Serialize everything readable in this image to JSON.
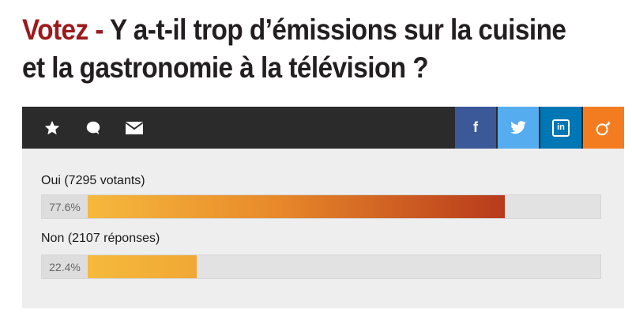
{
  "headline": {
    "kicker": "Votez -",
    "line1": "Y a-t-il trop d’émissions sur la cuisine",
    "line2": "et la gastronomie à la télévision ?"
  },
  "toolbar": {
    "left_icons": [
      "star-icon",
      "comment-icon",
      "mail-icon"
    ],
    "share": [
      {
        "name": "facebook",
        "glyph": "f",
        "color": "#3b5998"
      },
      {
        "name": "twitter",
        "icon": "twitter-bird-icon",
        "color": "#55acee"
      },
      {
        "name": "linkedin",
        "glyph": "in",
        "color": "#0077b5"
      },
      {
        "name": "reseau",
        "icon": "bomb-icon",
        "color": "#f47c20"
      }
    ]
  },
  "poll": {
    "options": [
      {
        "label": "Oui (7295 votants)",
        "percent_text": "77.6%",
        "percent": 77.6
      },
      {
        "label": "Non (2107 réponses)",
        "percent_text": "22.4%",
        "percent": 22.4
      }
    ],
    "colors": {
      "bar_start": "#f6b93d",
      "bar_end": "#b83a1c",
      "track": "#e2e2e2",
      "panel": "#eeeeee"
    }
  }
}
